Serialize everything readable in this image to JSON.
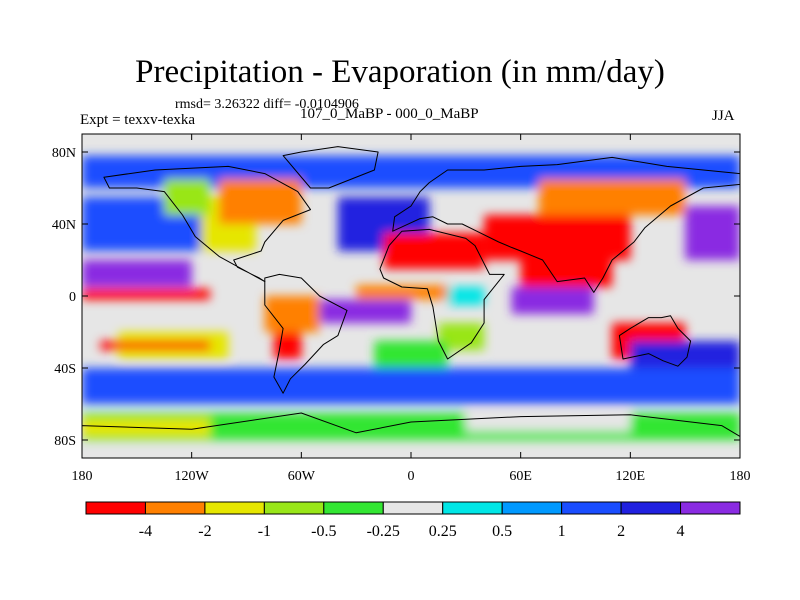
{
  "chart_data": {
    "type": "heatmap",
    "title": "Precipitation - Evaporation (in mm/day)",
    "stats_line": "rmsd= 3.26322 diff= -0.0104906",
    "left_label": "Expt = texxv-texka",
    "center_label": "107_0_MaBP - 000_0_MaBP",
    "right_label": "JJA",
    "xlabel": "",
    "ylabel": "",
    "xlim": [
      -180,
      180
    ],
    "ylim": [
      -90,
      90
    ],
    "x_ticks": [
      {
        "value": -180,
        "label": "180"
      },
      {
        "value": -120,
        "label": "120W"
      },
      {
        "value": -60,
        "label": "60W"
      },
      {
        "value": 0,
        "label": "0"
      },
      {
        "value": 60,
        "label": "60E"
      },
      {
        "value": 120,
        "label": "120E"
      },
      {
        "value": 180,
        "label": "180"
      }
    ],
    "y_ticks": [
      {
        "value": 80,
        "label": "80N"
      },
      {
        "value": 40,
        "label": "40N"
      },
      {
        "value": 0,
        "label": "0"
      },
      {
        "value": -40,
        "label": "40S"
      },
      {
        "value": -80,
        "label": "80S"
      }
    ],
    "colorbar": {
      "levels": [
        "-4",
        "-2",
        "-1",
        "-0.5",
        "-0.25",
        "0.25",
        "0.5",
        "1",
        "2",
        "4"
      ],
      "colors": [
        "#ff0000",
        "#ff8000",
        "#e6e600",
        "#99e619",
        "#33e633",
        "#e6e6e6",
        "#00e6e6",
        "#0099ff",
        "#1a4dff",
        "#2020e0",
        "#8a2be2"
      ]
    },
    "regions": [
      {
        "lon": [
          -180,
          180
        ],
        "lat": [
          -90,
          90
        ],
        "level": 5
      },
      {
        "lon": [
          -180,
          180
        ],
        "lat": [
          60,
          78
        ],
        "level": 8
      },
      {
        "lon": [
          -180,
          180
        ],
        "lat": [
          -60,
          -40
        ],
        "level": 8
      },
      {
        "lon": [
          -180,
          -100
        ],
        "lat": [
          25,
          55
        ],
        "level": 8
      },
      {
        "lon": [
          -40,
          10
        ],
        "lat": [
          25,
          55
        ],
        "level": 9
      },
      {
        "lon": [
          150,
          180
        ],
        "lat": [
          20,
          50
        ],
        "level": 10
      },
      {
        "lon": [
          -180,
          -120
        ],
        "lat": [
          5,
          20
        ],
        "level": 10
      },
      {
        "lon": [
          -115,
          -85
        ],
        "lat": [
          25,
          55
        ],
        "level": 2
      },
      {
        "lon": [
          -105,
          -60
        ],
        "lat": [
          40,
          65
        ],
        "level": 1
      },
      {
        "lon": [
          -135,
          -110
        ],
        "lat": [
          45,
          65
        ],
        "level": 3
      },
      {
        "lon": [
          -15,
          40
        ],
        "lat": [
          15,
          35
        ],
        "level": 0
      },
      {
        "lon": [
          40,
          120
        ],
        "lat": [
          20,
          45
        ],
        "level": 0
      },
      {
        "lon": [
          70,
          150
        ],
        "lat": [
          45,
          65
        ],
        "level": 1
      },
      {
        "lon": [
          60,
          110
        ],
        "lat": [
          5,
          20
        ],
        "level": 0
      },
      {
        "lon": [
          -180,
          -110
        ],
        "lat": [
          -2,
          4
        ],
        "level": 0
      },
      {
        "lon": [
          -30,
          20
        ],
        "lat": [
          -2,
          6
        ],
        "level": 1
      },
      {
        "lon": [
          -50,
          0
        ],
        "lat": [
          -15,
          -2
        ],
        "level": 10
      },
      {
        "lon": [
          20,
          40
        ],
        "lat": [
          -5,
          5
        ],
        "level": 6
      },
      {
        "lon": [
          55,
          100
        ],
        "lat": [
          -10,
          5
        ],
        "level": 10
      },
      {
        "lon": [
          -80,
          -50
        ],
        "lat": [
          -20,
          0
        ],
        "level": 1
      },
      {
        "lon": [
          -75,
          -60
        ],
        "lat": [
          -35,
          -20
        ],
        "level": 0
      },
      {
        "lon": [
          110,
          150
        ],
        "lat": [
          -35,
          -15
        ],
        "level": 0
      },
      {
        "lon": [
          15,
          40
        ],
        "lat": [
          -30,
          -15
        ],
        "level": 3
      },
      {
        "lon": [
          -160,
          -100
        ],
        "lat": [
          -35,
          -20
        ],
        "level": 2
      },
      {
        "lon": [
          -170,
          -110
        ],
        "lat": [
          -30,
          -25
        ],
        "level": 0
      },
      {
        "lon": [
          -180,
          180
        ],
        "lat": [
          -80,
          -65
        ],
        "level": 4
      },
      {
        "lon": [
          -180,
          -110
        ],
        "lat": [
          -78,
          -68
        ],
        "level": 2
      },
      {
        "lon": [
          30,
          120
        ],
        "lat": [
          -75,
          -65
        ],
        "level": 5
      },
      {
        "lon": [
          120,
          180
        ],
        "lat": [
          -40,
          -25
        ],
        "level": 9
      },
      {
        "lon": [
          -20,
          20
        ],
        "lat": [
          -40,
          -25
        ],
        "level": 4
      }
    ]
  }
}
